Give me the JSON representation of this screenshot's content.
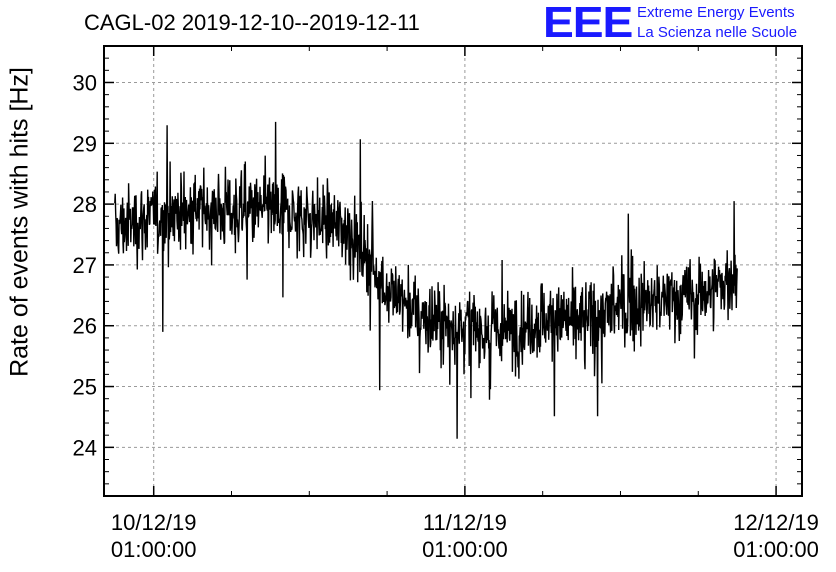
{
  "title": "CAGL-02 2019-12-10--2019-12-11",
  "logo": {
    "mark": "EEE",
    "line1": "Extreme Energy Events",
    "line2": "La Scienza nelle Scuole",
    "color": "#1a1aff"
  },
  "chart_data": {
    "type": "line",
    "title": "CAGL-02 2019-12-10--2019-12-11",
    "xlabel": "",
    "ylabel": "Rate of events with hits [Hz]",
    "ylim": [
      23.2,
      30.6
    ],
    "xlim": [
      "2019-12-09 21:10:00",
      "2019-12-12 03:00:00"
    ],
    "yticks": [
      24,
      25,
      26,
      27,
      28,
      29,
      30
    ],
    "xticks": [
      {
        "date": "10/12/19",
        "time": "01:00:00"
      },
      {
        "date": "11/12/19",
        "time": "01:00:00"
      },
      {
        "date": "12/12/19",
        "time": "01:00:00"
      }
    ],
    "grid": true,
    "line_color": "#000000",
    "series_trend": {
      "x": [
        "2019-12-09 22:00",
        "2019-12-10 01:00",
        "2019-12-10 04:00",
        "2019-12-10 07:00",
        "2019-12-10 10:00",
        "2019-12-10 13:00",
        "2019-12-10 16:00",
        "2019-12-10 19:00",
        "2019-12-10 22:00",
        "2019-12-11 01:00",
        "2019-12-11 04:00",
        "2019-12-11 07:00",
        "2019-12-11 10:00",
        "2019-12-11 13:00",
        "2019-12-11 16:00",
        "2019-12-11 19:00",
        "2019-12-11 22:00"
      ],
      "values": [
        27.6,
        27.8,
        27.9,
        27.9,
        27.9,
        27.8,
        27.6,
        26.6,
        26.1,
        26.0,
        25.9,
        26.1,
        26.1,
        26.3,
        26.4,
        26.5,
        26.8
      ],
      "noise_amplitude": 0.8
    }
  }
}
